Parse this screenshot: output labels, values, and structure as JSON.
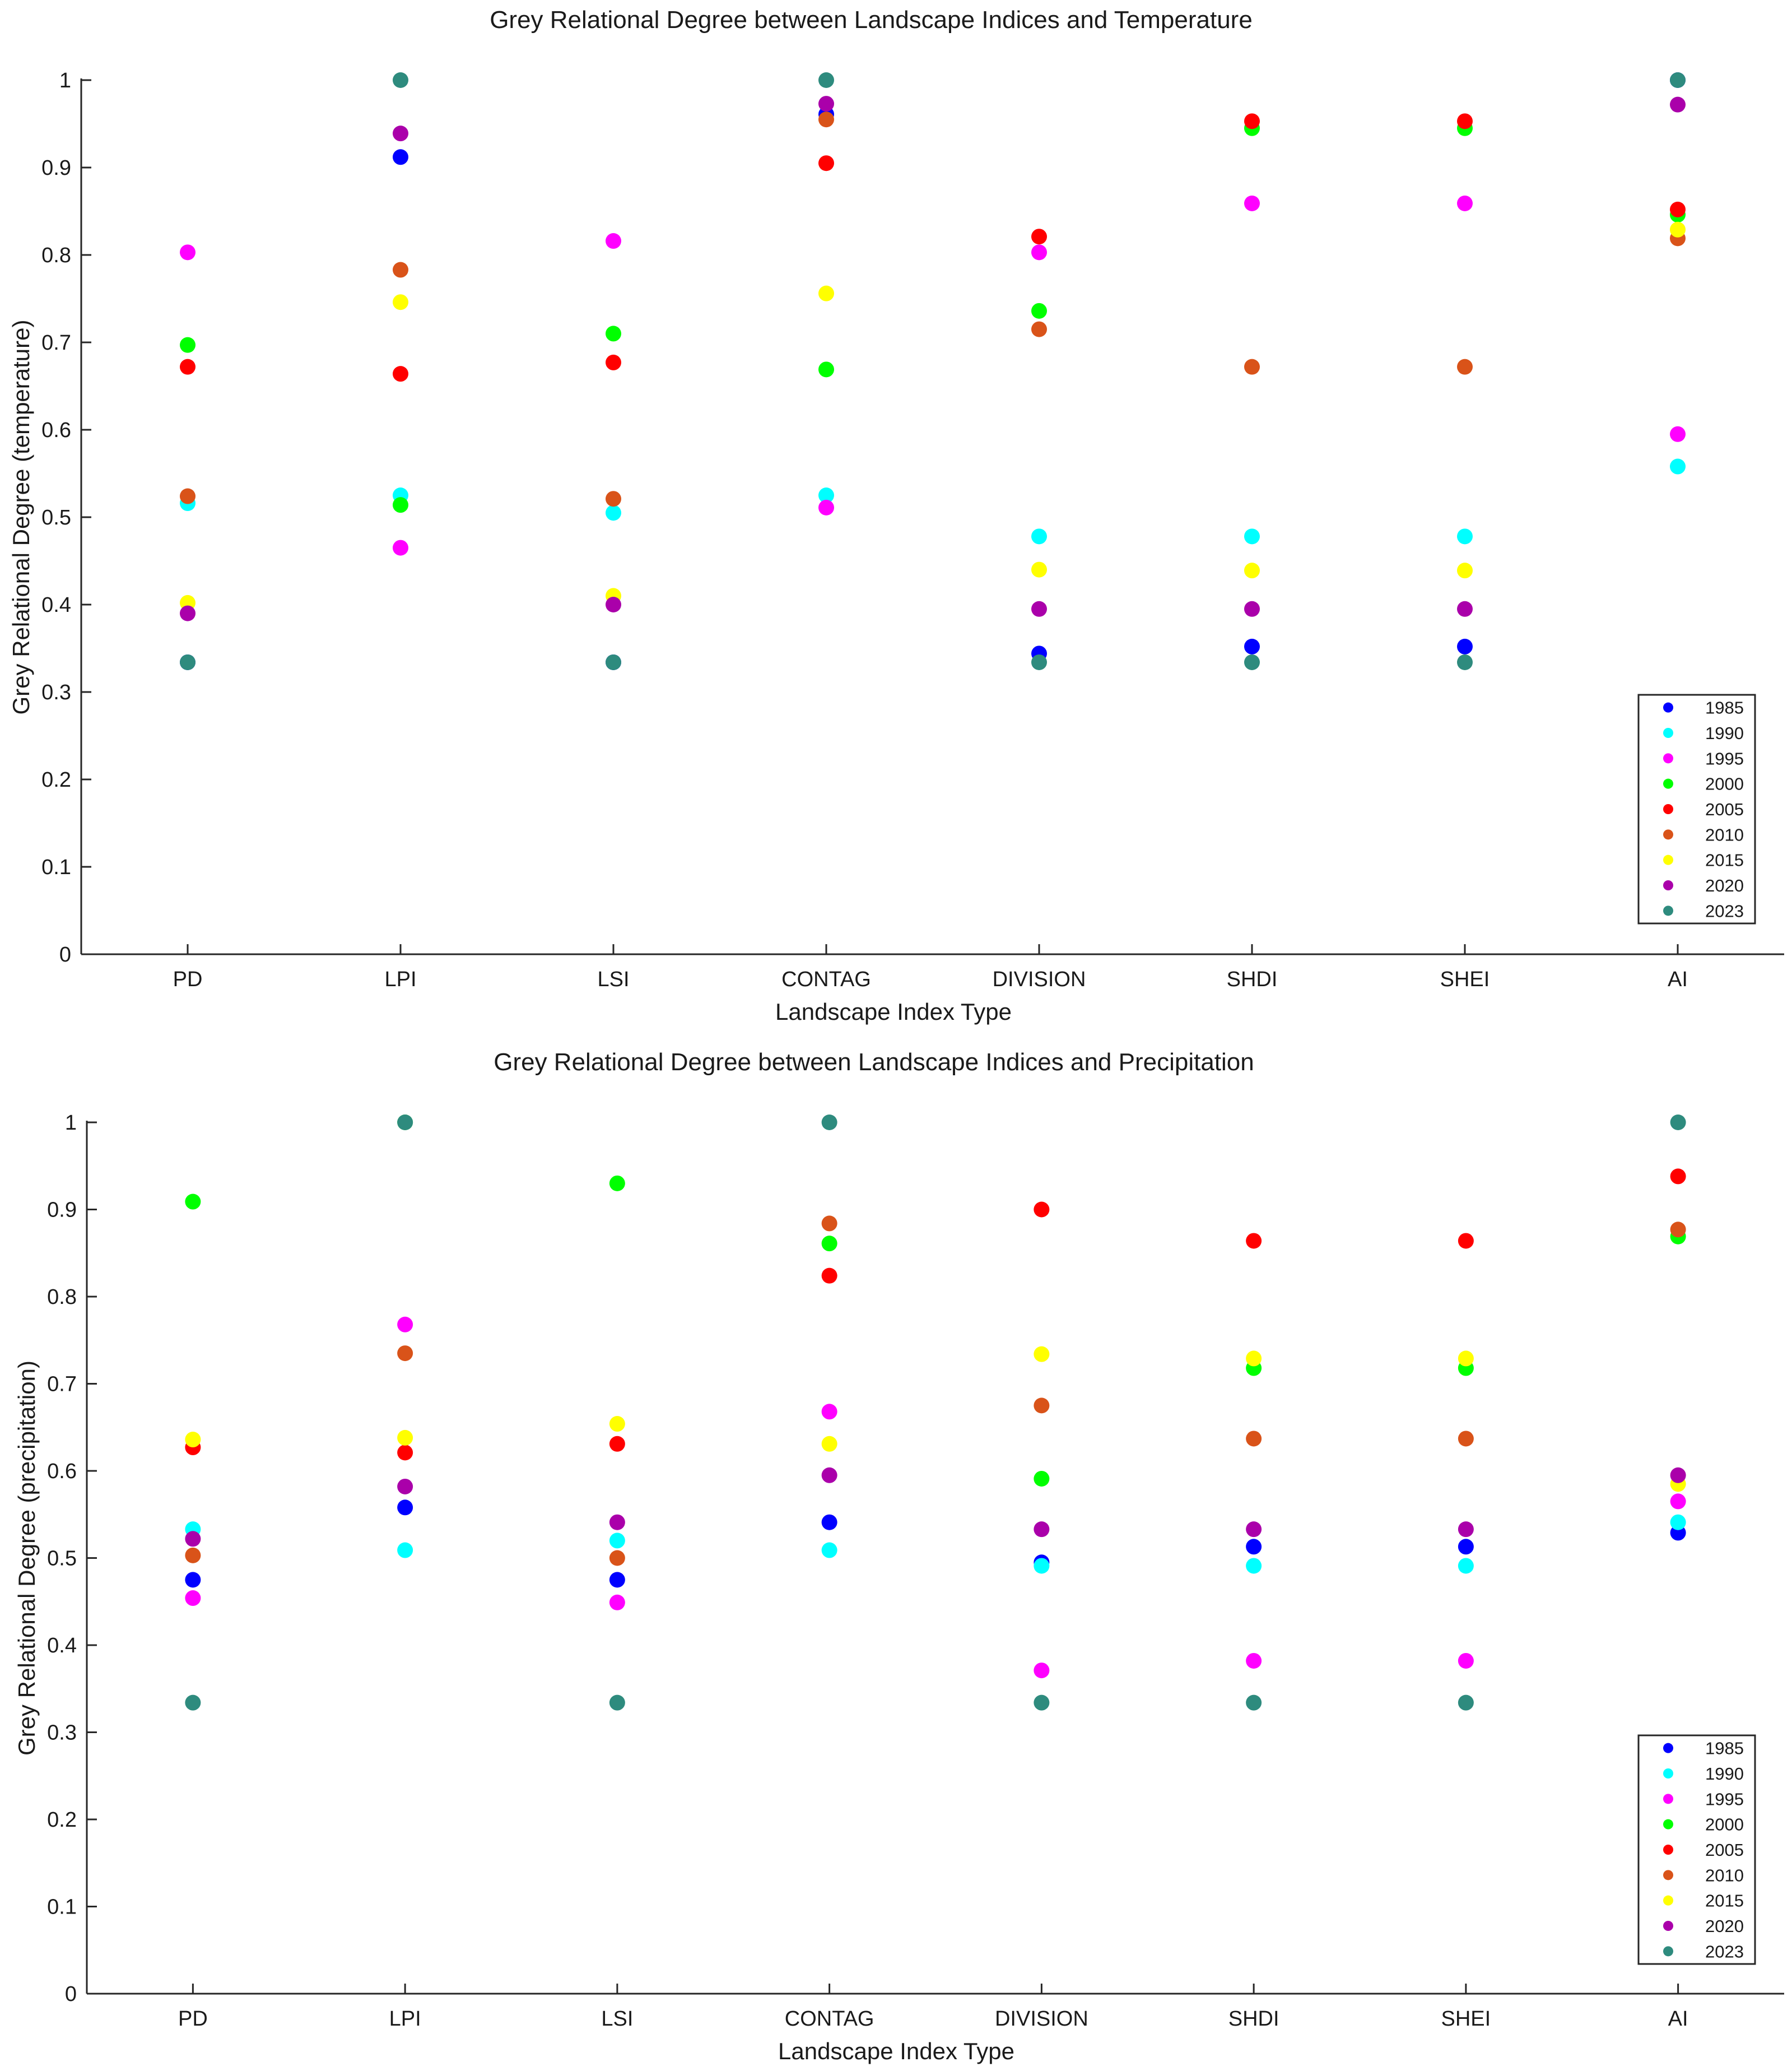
{
  "chart_data": [
    {
      "type": "scatter",
      "title": "Grey Relational Degree between Landscape Indices and Temperature",
      "xlabel": "Landscape Index Type",
      "ylabel": "Grey Relational Degree (temperature)",
      "categories": [
        "PD",
        "LPI",
        "LSI",
        "CONTAG",
        "DIVISION",
        "SHDI",
        "SHEI",
        "AI"
      ],
      "ylim": [
        0,
        1
      ],
      "yticks": [
        "0",
        "0.1",
        "0.2",
        "0.3",
        "0.4",
        "0.5",
        "0.6",
        "0.7",
        "0.8",
        "0.9",
        "1"
      ],
      "legend_position": "bottom-right",
      "series": [
        {
          "name": "1985",
          "color": "#0000ff",
          "values": [
            0.334,
            0.912,
            0.334,
            0.961,
            0.344,
            0.352,
            0.352,
            1.0
          ]
        },
        {
          "name": "1990",
          "color": "#00ffff",
          "values": [
            0.516,
            0.525,
            0.505,
            0.525,
            0.478,
            0.478,
            0.478,
            0.558
          ]
        },
        {
          "name": "1995",
          "color": "#ff00ff",
          "values": [
            0.803,
            0.465,
            0.816,
            0.511,
            0.803,
            0.859,
            0.859,
            0.595
          ]
        },
        {
          "name": "2000",
          "color": "#00ff00",
          "values": [
            0.697,
            0.514,
            0.71,
            0.669,
            0.736,
            0.945,
            0.945,
            0.846
          ]
        },
        {
          "name": "2005",
          "color": "#ff0000",
          "values": [
            0.672,
            0.664,
            0.677,
            0.905,
            0.821,
            0.953,
            0.953,
            0.852
          ]
        },
        {
          "name": "2010",
          "color": "#d95319",
          "values": [
            0.524,
            0.783,
            0.521,
            0.955,
            0.715,
            0.672,
            0.672,
            0.819
          ]
        },
        {
          "name": "2015",
          "color": "#ffff00",
          "values": [
            0.402,
            0.746,
            0.41,
            0.756,
            0.44,
            0.439,
            0.439,
            0.829
          ]
        },
        {
          "name": "2020",
          "color": "#aa00aa",
          "values": [
            0.39,
            0.939,
            0.4,
            0.973,
            0.395,
            0.395,
            0.395,
            0.972
          ]
        },
        {
          "name": "2023",
          "color": "#2e8b7e",
          "values": [
            0.334,
            1.0,
            0.334,
            1.0,
            0.334,
            0.334,
            0.334,
            1.0
          ]
        }
      ]
    },
    {
      "type": "scatter",
      "title": "Grey Relational Degree between Landscape Indices and Precipitation",
      "xlabel": "Landscape Index Type",
      "ylabel": "Grey Relational Degree (precipitation)",
      "categories": [
        "PD",
        "LPI",
        "LSI",
        "CONTAG",
        "DIVISION",
        "SHDI",
        "SHEI",
        "AI"
      ],
      "ylim": [
        0,
        1
      ],
      "yticks": [
        "0",
        "0.1",
        "0.2",
        "0.3",
        "0.4",
        "0.5",
        "0.6",
        "0.7",
        "0.8",
        "0.9",
        "1"
      ],
      "legend_position": "bottom-right",
      "series": [
        {
          "name": "1985",
          "color": "#0000ff",
          "values": [
            0.475,
            0.558,
            0.475,
            0.541,
            0.495,
            0.513,
            0.513,
            0.529
          ]
        },
        {
          "name": "1990",
          "color": "#00ffff",
          "values": [
            0.533,
            0.509,
            0.52,
            0.509,
            0.491,
            0.491,
            0.491,
            0.541
          ]
        },
        {
          "name": "1995",
          "color": "#ff00ff",
          "values": [
            0.454,
            0.768,
            0.449,
            0.668,
            0.371,
            0.382,
            0.382,
            0.565
          ]
        },
        {
          "name": "2000",
          "color": "#00ff00",
          "values": [
            0.909,
            1.0,
            0.93,
            0.861,
            0.591,
            0.718,
            0.718,
            0.869
          ]
        },
        {
          "name": "2005",
          "color": "#ff0000",
          "values": [
            0.627,
            0.621,
            0.631,
            0.824,
            0.9,
            0.864,
            0.864,
            0.938
          ]
        },
        {
          "name": "2010",
          "color": "#d95319",
          "values": [
            0.503,
            0.735,
            0.5,
            0.884,
            0.675,
            0.637,
            0.637,
            0.877
          ]
        },
        {
          "name": "2015",
          "color": "#ffff00",
          "values": [
            0.636,
            0.638,
            0.654,
            0.631,
            0.734,
            0.729,
            0.729,
            0.585
          ]
        },
        {
          "name": "2020",
          "color": "#aa00aa",
          "values": [
            0.522,
            0.582,
            0.541,
            0.595,
            0.533,
            0.533,
            0.533,
            0.595
          ]
        },
        {
          "name": "2023",
          "color": "#2e8b7e",
          "values": [
            0.334,
            1.0,
            0.334,
            1.0,
            0.334,
            0.334,
            0.334,
            1.0
          ]
        }
      ]
    }
  ]
}
